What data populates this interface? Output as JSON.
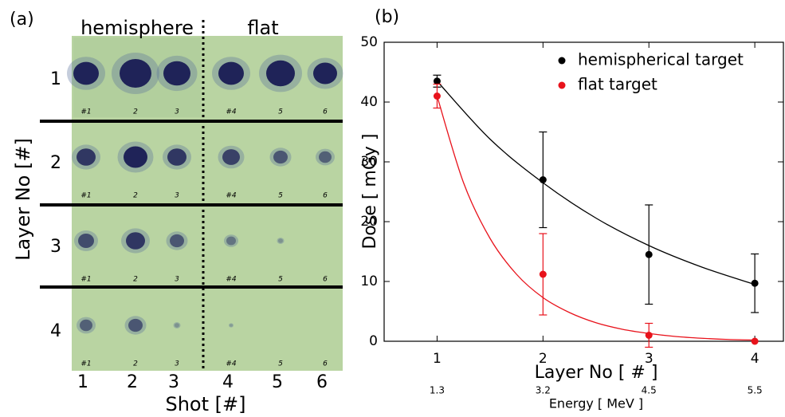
{
  "panel_a": {
    "label": "(a)",
    "column_groups": [
      "hemisphere",
      "flat"
    ],
    "rows": [
      "1",
      "2",
      "3",
      "4"
    ],
    "row_axis_label": "Layer No [#]",
    "shots": [
      "1",
      "2",
      "3",
      "4",
      "5",
      "6"
    ],
    "shot_axis_label": "Shot [#]",
    "handwritten": [
      "#1",
      "2",
      "3",
      "#4",
      "5",
      "6"
    ]
  },
  "chart_data": {
    "type": "errorbar",
    "panel_label": "(b)",
    "x_label": "Layer No [ # ]",
    "y_label": "Dose [ mGy ]",
    "x": [
      1,
      2,
      3,
      4
    ],
    "series": [
      {
        "name": "hemispherical target",
        "color": "#000000",
        "values": [
          43.5,
          27,
          14.5,
          9.7
        ],
        "errors": [
          1,
          8,
          8.3,
          4.9
        ],
        "fit": {
          "x": [
            1,
            1.5,
            2,
            2.5,
            3,
            3.5,
            4
          ],
          "values": [
            43.5,
            33.8,
            26.5,
            20.6,
            16,
            12.4,
            9.5
          ]
        }
      },
      {
        "name": "flat target",
        "color": "#e8121b",
        "values": [
          41,
          11.2,
          1,
          0
        ],
        "errors": [
          2,
          6.8,
          2,
          0
        ],
        "fit": {
          "x": [
            1,
            1.25,
            1.5,
            1.75,
            2,
            2.25,
            2.5,
            2.75,
            3,
            3.25,
            3.5,
            3.75,
            4
          ],
          "values": [
            41,
            26.5,
            17.2,
            11.2,
            7.3,
            4.8,
            3.1,
            2,
            1.3,
            0.8,
            0.5,
            0.3,
            0.2
          ]
        }
      }
    ],
    "xlim": [
      0.5,
      4.27
    ],
    "ylim": [
      0,
      50
    ],
    "xticks": [
      1,
      2,
      3,
      4
    ],
    "yticks": [
      0,
      10,
      20,
      30,
      40,
      50
    ],
    "energy_ticks": [
      1.3,
      3.2,
      4.5,
      5.5
    ],
    "energy_label": "Energy [ MeV ]",
    "legend": "upper right"
  }
}
